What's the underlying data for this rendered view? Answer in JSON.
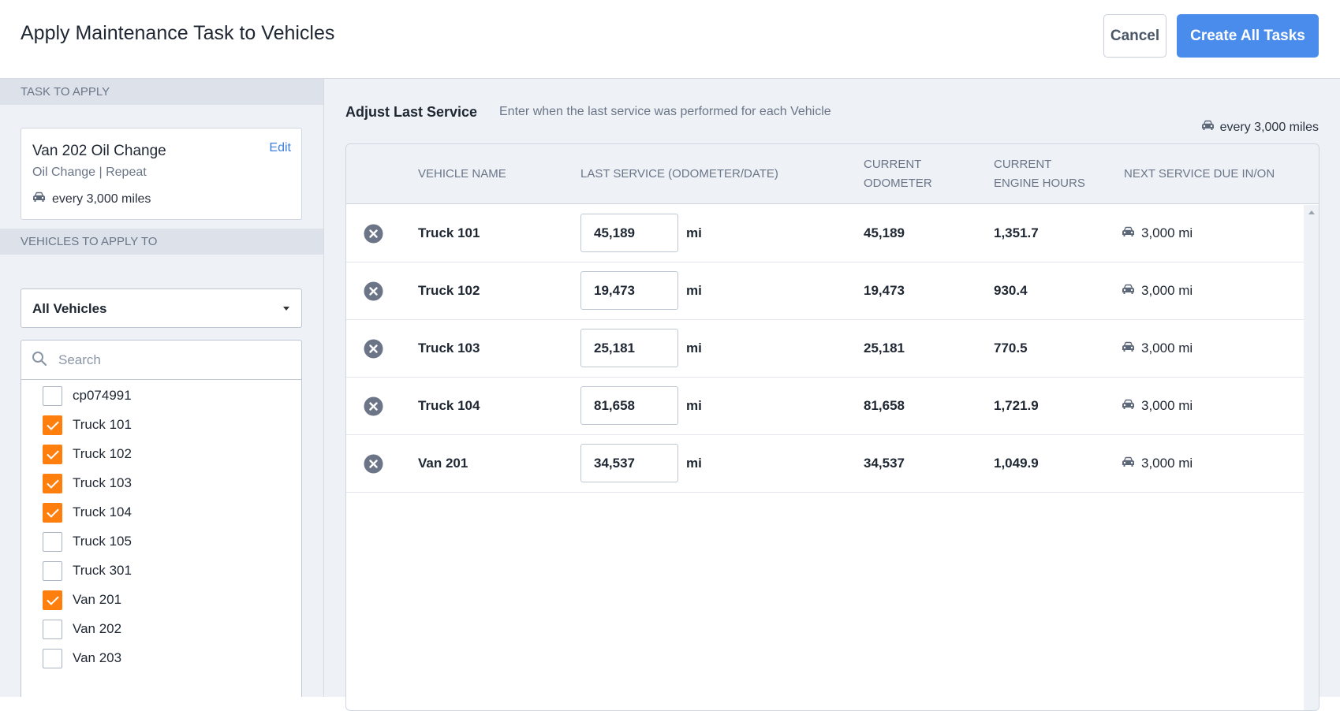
{
  "header": {
    "title": "Apply Maintenance Task to Vehicles",
    "cancel_label": "Cancel",
    "create_label": "Create All Tasks"
  },
  "sidebar": {
    "task_section_label": "TASK TO APPLY",
    "task": {
      "name": "Van 202 Oil Change",
      "edit_label": "Edit",
      "subtitle": "Oil Change | Repeat",
      "frequency": "every 3,000 miles"
    },
    "vehicles_section_label": "VEHICLES TO APPLY TO",
    "filter_value": "All Vehicles",
    "search_placeholder": "Search",
    "vehicles": [
      {
        "label": "cp074991",
        "checked": false
      },
      {
        "label": "Truck 101",
        "checked": true
      },
      {
        "label": "Truck 102",
        "checked": true
      },
      {
        "label": "Truck 103",
        "checked": true
      },
      {
        "label": "Truck 104",
        "checked": true
      },
      {
        "label": "Truck 105",
        "checked": false
      },
      {
        "label": "Truck 301",
        "checked": false
      },
      {
        "label": "Van 201",
        "checked": true
      },
      {
        "label": "Van 202",
        "checked": false
      },
      {
        "label": "Van 203",
        "checked": false
      }
    ]
  },
  "main": {
    "title": "Adjust Last Service",
    "description": "Enter when the last service was performed for each Vehicle",
    "frequency": "every 3,000 miles",
    "columns": {
      "vehicle_name": "VEHICLE NAME",
      "last_service": "LAST SERVICE (ODOMETER/DATE)",
      "current_odometer_1": "CURRENT",
      "current_odometer_2": "ODOMETER",
      "engine_hours_1": "CURRENT",
      "engine_hours_2": "ENGINE HOURS",
      "next_due": "NEXT SERVICE DUE IN/ON"
    },
    "rows": [
      {
        "vehicle": "Truck 101",
        "last_service": "45,189",
        "unit": "mi",
        "odometer": "45,189",
        "engine_hours": "1,351.7",
        "next_due": "3,000 mi"
      },
      {
        "vehicle": "Truck 102",
        "last_service": "19,473",
        "unit": "mi",
        "odometer": "19,473",
        "engine_hours": "930.4",
        "next_due": "3,000 mi"
      },
      {
        "vehicle": "Truck 103",
        "last_service": "25,181",
        "unit": "mi",
        "odometer": "25,181",
        "engine_hours": "770.5",
        "next_due": "3,000 mi"
      },
      {
        "vehicle": "Truck 104",
        "last_service": "81,658",
        "unit": "mi",
        "odometer": "81,658",
        "engine_hours": "1,721.9",
        "next_due": "3,000 mi"
      },
      {
        "vehicle": "Van 201",
        "last_service": "34,537",
        "unit": "mi",
        "odometer": "34,537",
        "engine_hours": "1,049.9",
        "next_due": "3,000 mi"
      }
    ]
  },
  "colors": {
    "primary": "#4a8cec",
    "checkbox_checked": "#ff7f0e",
    "panel_bg": "#eef1f5"
  }
}
